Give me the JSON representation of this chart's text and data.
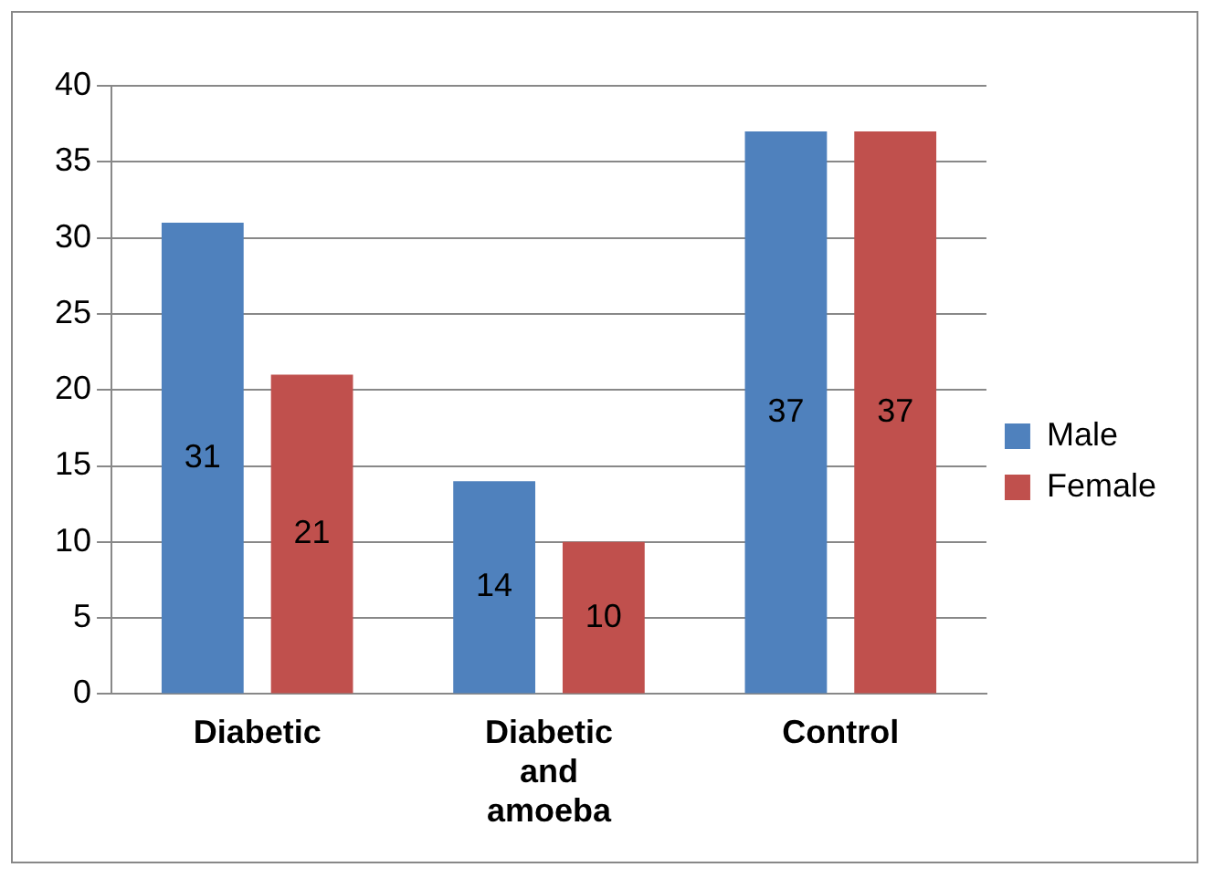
{
  "chart_data": {
    "type": "bar",
    "categories": [
      "Diabetic",
      "Diabetic and amoeba",
      "Control"
    ],
    "series": [
      {
        "name": "Male",
        "color": "#4f81bd",
        "values": [
          31,
          14,
          37
        ]
      },
      {
        "name": "Female",
        "color": "#c0504d",
        "values": [
          21,
          10,
          37
        ]
      }
    ],
    "ylim": [
      0,
      40
    ],
    "yticks": [
      0,
      5,
      10,
      15,
      20,
      25,
      30,
      35,
      40
    ],
    "grid": "y",
    "legend": "right",
    "data_labels": true
  }
}
